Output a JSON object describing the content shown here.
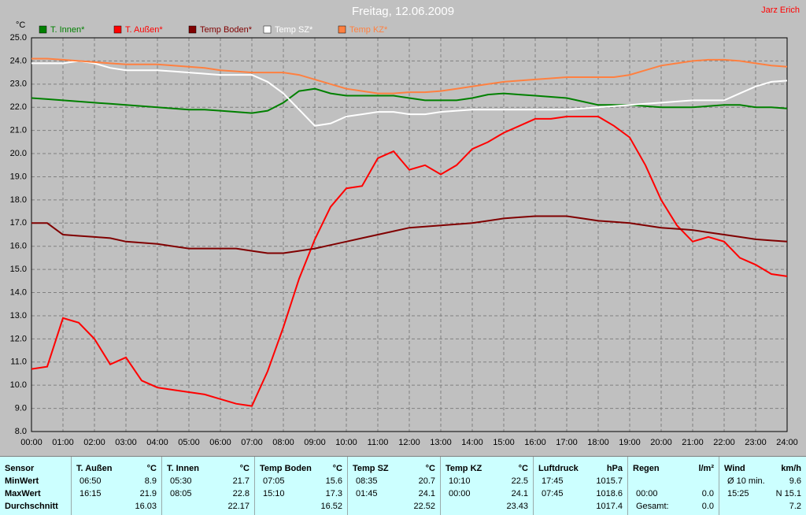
{
  "chart_data": {
    "type": "line",
    "title": "Freitag, 12.06.2009",
    "author": "Jarz Erich",
    "y_label": "°C",
    "x": [
      0,
      0.5,
      1,
      1.5,
      2,
      2.5,
      3,
      3.5,
      4,
      4.5,
      5,
      5.5,
      6,
      6.5,
      7,
      7.5,
      8,
      8.5,
      9,
      9.5,
      10,
      10.5,
      11,
      11.5,
      12,
      12.5,
      13,
      13.5,
      14,
      14.5,
      15,
      15.5,
      16,
      16.5,
      17,
      17.5,
      18,
      18.5,
      19,
      19.5,
      20,
      20.5,
      21,
      21.5,
      22,
      22.5,
      23,
      23.5,
      24
    ],
    "series": [
      {
        "name": "T. Innen*",
        "color": "#008000",
        "values": [
          22.4,
          22.35,
          22.3,
          22.25,
          22.2,
          22.15,
          22.1,
          22.05,
          22.0,
          21.95,
          21.9,
          21.9,
          21.85,
          21.8,
          21.75,
          21.85,
          22.2,
          22.7,
          22.8,
          22.6,
          22.5,
          22.5,
          22.5,
          22.5,
          22.4,
          22.3,
          22.3,
          22.3,
          22.4,
          22.55,
          22.6,
          22.55,
          22.5,
          22.45,
          22.4,
          22.25,
          22.1,
          22.1,
          22.1,
          22.05,
          22.0,
          22.0,
          22.0,
          22.05,
          22.1,
          22.1,
          22.0,
          22.0,
          21.95
        ]
      },
      {
        "name": "T. Außen*",
        "color": "#ff0000",
        "values": [
          10.7,
          10.8,
          12.9,
          12.7,
          12.0,
          10.9,
          11.2,
          10.2,
          9.9,
          9.8,
          9.7,
          9.6,
          9.4,
          9.2,
          9.1,
          10.6,
          12.5,
          14.6,
          16.3,
          17.7,
          18.5,
          18.6,
          19.8,
          20.1,
          19.3,
          19.5,
          19.1,
          19.5,
          20.2,
          20.5,
          20.9,
          21.2,
          21.5,
          21.5,
          21.6,
          21.6,
          21.6,
          21.2,
          20.7,
          19.5,
          18.0,
          16.9,
          16.2,
          16.4,
          16.2,
          15.5,
          15.2,
          14.8,
          14.7
        ]
      },
      {
        "name": "Temp Boden*",
        "color": "#800000",
        "values": [
          17.0,
          17.0,
          16.5,
          16.45,
          16.4,
          16.35,
          16.2,
          16.15,
          16.1,
          16.0,
          15.9,
          15.9,
          15.9,
          15.9,
          15.8,
          15.7,
          15.7,
          15.8,
          15.9,
          16.05,
          16.2,
          16.35,
          16.5,
          16.65,
          16.8,
          16.85,
          16.9,
          16.95,
          17.0,
          17.1,
          17.2,
          17.25,
          17.3,
          17.3,
          17.3,
          17.2,
          17.1,
          17.05,
          17.0,
          16.9,
          16.8,
          16.75,
          16.7,
          16.6,
          16.5,
          16.4,
          16.3,
          16.25,
          16.2
        ]
      },
      {
        "name": "Temp SZ*",
        "color": "#ffffff",
        "values": [
          23.9,
          23.9,
          23.9,
          24.0,
          23.9,
          23.7,
          23.6,
          23.6,
          23.6,
          23.55,
          23.5,
          23.45,
          23.4,
          23.4,
          23.4,
          23.1,
          22.6,
          21.9,
          21.2,
          21.3,
          21.6,
          21.7,
          21.8,
          21.8,
          21.7,
          21.7,
          21.8,
          21.85,
          21.9,
          21.9,
          21.9,
          21.9,
          21.9,
          21.9,
          21.9,
          21.95,
          22.0,
          22.05,
          22.1,
          22.15,
          22.2,
          22.25,
          22.3,
          22.3,
          22.3,
          22.6,
          22.9,
          23.1,
          23.15
        ]
      },
      {
        "name": "Temp KZ*",
        "color": "#ff8040",
        "values": [
          24.1,
          24.1,
          24.05,
          24.0,
          23.95,
          23.9,
          23.85,
          23.85,
          23.85,
          23.8,
          23.75,
          23.7,
          23.6,
          23.55,
          23.5,
          23.5,
          23.5,
          23.4,
          23.2,
          23.0,
          22.8,
          22.7,
          22.6,
          22.6,
          22.65,
          22.65,
          22.7,
          22.8,
          22.9,
          23.0,
          23.1,
          23.15,
          23.2,
          23.25,
          23.3,
          23.3,
          23.3,
          23.3,
          23.4,
          23.6,
          23.8,
          23.9,
          24.0,
          24.05,
          24.05,
          24.0,
          23.9,
          23.8,
          23.75
        ]
      }
    ],
    "xlim": [
      0,
      24
    ],
    "xticks": [
      {
        "value": 0,
        "label": "00:00"
      },
      {
        "value": 1,
        "label": "01:00"
      },
      {
        "value": 2,
        "label": "02:00"
      },
      {
        "value": 3,
        "label": "03:00"
      },
      {
        "value": 4,
        "label": "04:00"
      },
      {
        "value": 5,
        "label": "05:00"
      },
      {
        "value": 6,
        "label": "06:00"
      },
      {
        "value": 7,
        "label": "07:00"
      },
      {
        "value": 8,
        "label": "08:00"
      },
      {
        "value": 9,
        "label": "09:00"
      },
      {
        "value": 10,
        "label": "10:00"
      },
      {
        "value": 11,
        "label": "11:00"
      },
      {
        "value": 12,
        "label": "12:00"
      },
      {
        "value": 13,
        "label": "13:00"
      },
      {
        "value": 14,
        "label": "14:00"
      },
      {
        "value": 15,
        "label": "15:00"
      },
      {
        "value": 16,
        "label": "16:00"
      },
      {
        "value": 17,
        "label": "17:00"
      },
      {
        "value": 18,
        "label": "18:00"
      },
      {
        "value": 19,
        "label": "19:00"
      },
      {
        "value": 20,
        "label": "20:00"
      },
      {
        "value": 21,
        "label": "21:00"
      },
      {
        "value": 22,
        "label": "22:00"
      },
      {
        "value": 23,
        "label": "23:00"
      },
      {
        "value": 24,
        "label": "24:00"
      }
    ],
    "ylim": [
      8,
      25
    ],
    "yticks": [
      {
        "value": 8,
        "label": "8.0"
      },
      {
        "value": 9,
        "label": "9.0"
      },
      {
        "value": 10,
        "label": "10.0"
      },
      {
        "value": 11,
        "label": "11.0"
      },
      {
        "value": 12,
        "label": "12.0"
      },
      {
        "value": 13,
        "label": "13.0"
      },
      {
        "value": 14,
        "label": "14.0"
      },
      {
        "value": 15,
        "label": "15.0"
      },
      {
        "value": 16,
        "label": "16.0"
      },
      {
        "value": 17,
        "label": "17.0"
      },
      {
        "value": 18,
        "label": "18.0"
      },
      {
        "value": 19,
        "label": "19.0"
      },
      {
        "value": 20,
        "label": "20.0"
      },
      {
        "value": 21,
        "label": "21.0"
      },
      {
        "value": 22,
        "label": "22.0"
      },
      {
        "value": 23,
        "label": "23.0"
      },
      {
        "value": 24,
        "label": "24.0"
      },
      {
        "value": 25,
        "label": "25.0"
      }
    ],
    "grid": true
  },
  "stats_table": {
    "row_labels": [
      "Sensor",
      "MinWert",
      "MaxWert",
      "Durchschnitt"
    ],
    "columns": [
      {
        "name": "T. Außen",
        "unit": "°C",
        "rows": [
          {
            "time": "06:50",
            "value": "8.9"
          },
          {
            "time": "16:15",
            "value": "21.9"
          },
          {
            "value": "16.03"
          }
        ]
      },
      {
        "name": "T. Innen",
        "unit": "°C",
        "rows": [
          {
            "time": "05:30",
            "value": "21.7"
          },
          {
            "time": "08:05",
            "value": "22.8"
          },
          {
            "value": "22.17"
          }
        ]
      },
      {
        "name": "Temp Boden",
        "unit": "°C",
        "rows": [
          {
            "time": "07:05",
            "value": "15.6"
          },
          {
            "time": "15:10",
            "value": "17.3"
          },
          {
            "value": "16.52"
          }
        ]
      },
      {
        "name": "Temp SZ",
        "unit": "°C",
        "rows": [
          {
            "time": "08:35",
            "value": "20.7"
          },
          {
            "time": "01:45",
            "value": "24.1"
          },
          {
            "value": "22.52"
          }
        ]
      },
      {
        "name": "Temp KZ",
        "unit": "°C",
        "rows": [
          {
            "time": "10:10",
            "value": "22.5"
          },
          {
            "time": "00:00",
            "value": "24.1"
          },
          {
            "value": "23.43"
          }
        ]
      },
      {
        "name": "Luftdruck",
        "unit": "hPa",
        "rows": [
          {
            "time": "17:45",
            "value": "1015.7"
          },
          {
            "time": "07:45",
            "value": "1018.6"
          },
          {
            "value": "1017.4"
          }
        ]
      },
      {
        "name": "Regen",
        "unit": "l/m²",
        "rows": [
          null,
          {
            "time": "00:00",
            "value": "0.0"
          },
          {
            "time": "Gesamt:",
            "value": "0.0"
          }
        ]
      },
      {
        "name": "Wind",
        "unit": "km/h",
        "rows": [
          {
            "time": "Ø 10 min.",
            "value": "9.6"
          },
          {
            "time": "15:25",
            "value": "N 15.1"
          },
          {
            "value": "7.2"
          }
        ]
      }
    ]
  }
}
